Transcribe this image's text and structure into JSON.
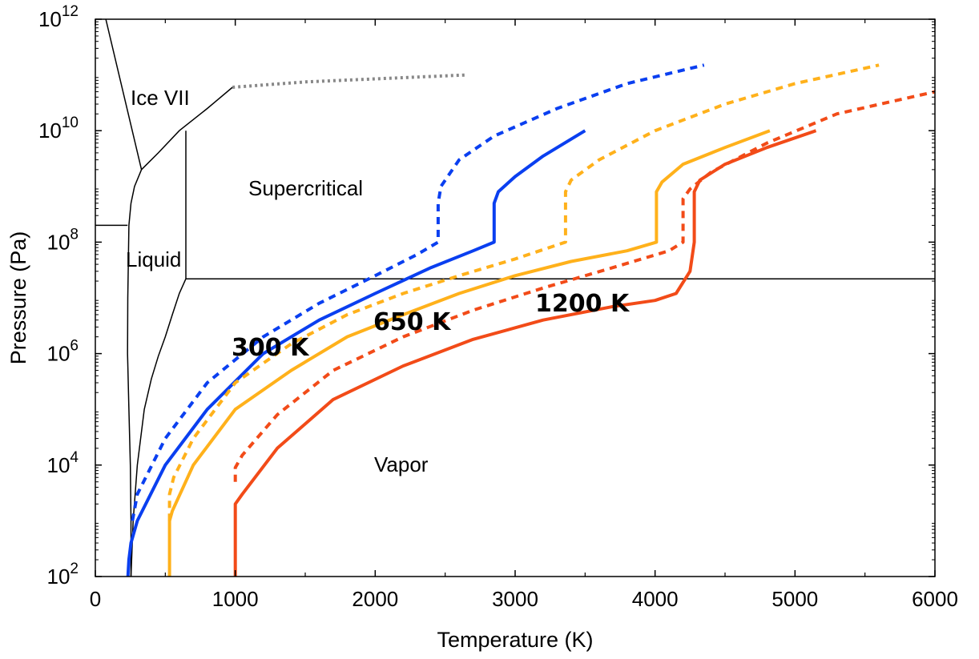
{
  "chart_data": {
    "type": "line",
    "title": "",
    "xlabel": "Temperature (K)",
    "ylabel": "Pressure (Pa)",
    "xlim": [
      0,
      6000
    ],
    "ylim": [
      100,
      1000000000000
    ],
    "yscale": "log",
    "grid": false,
    "legend": "none",
    "x_ticks": [
      "0",
      "1000",
      "2000",
      "3000",
      "4000",
      "5000",
      "6000"
    ],
    "y_ticks": [
      {
        "base": "10",
        "exp": "2"
      },
      {
        "base": "10",
        "exp": "4"
      },
      {
        "base": "10",
        "exp": "6"
      },
      {
        "base": "10",
        "exp": "8"
      },
      {
        "base": "10",
        "exp": "10"
      },
      {
        "base": "10",
        "exp": "12"
      }
    ],
    "region_labels": [
      "Ice VII",
      "Supercritical",
      "Liquid",
      "Vapor"
    ],
    "series_labels": [
      "300 K",
      "650 K",
      "1200 K"
    ],
    "phase_boundaries": [
      {
        "name": "ice-vii-melting",
        "x": [
          75,
          330
        ],
        "y": [
          1000000000000,
          2000000000
        ]
      },
      {
        "name": "liquid-ice-boundary",
        "x": [
          0,
          230
        ],
        "y": [
          200000000,
          200000000
        ]
      },
      {
        "name": "melting-curve",
        "x": [
          255,
          255,
          250,
          240,
          230,
          232,
          240,
          255,
          280,
          330
        ],
        "y": [
          100,
          1000,
          10000,
          100000,
          1000000,
          10000000,
          200000000,
          500000000,
          1000000000,
          2000000000
        ]
      },
      {
        "name": "ice-vii-upper",
        "x": [
          330,
          450,
          600,
          800,
          980
        ],
        "y": [
          2000000000,
          4000000000,
          10000000000,
          25000000000,
          60000000000
        ]
      },
      {
        "name": "vaporization-curve",
        "x": [
          255,
          270,
          300,
          350,
          400,
          450,
          500,
          550,
          600,
          647
        ],
        "y": [
          100,
          1000,
          10000,
          100000,
          350000,
          900000,
          2000000,
          5000000,
          12000000,
          22000000
        ]
      },
      {
        "name": "critical-temperature",
        "x": [
          647,
          647
        ],
        "y": [
          22000000,
          10000000000
        ]
      },
      {
        "name": "critical-pressure",
        "x": [
          647,
          6000
        ],
        "y": [
          22000000,
          22000000
        ]
      }
    ],
    "extrapolated_boundary": {
      "name": "ice-vii-extrapolated",
      "color": "#888888",
      "x": [
        980,
        1500,
        2000,
        2650
      ],
      "y": [
        60000000000,
        75000000000,
        85000000000,
        100000000000
      ]
    },
    "series": [
      {
        "name": "300 K",
        "color": "#0a3ff0",
        "style": "solid",
        "x": [
          233,
          240,
          255,
          300,
          500,
          800,
          1200,
          1600,
          2000,
          2400,
          2700,
          2850,
          2850,
          2880,
          3000,
          3200,
          3500
        ],
        "y": [
          100,
          200,
          400,
          1000,
          10000,
          100000,
          1000000,
          4000000,
          12000000,
          35000000,
          70000000,
          100000000,
          500000000,
          800000000,
          1500000000,
          3500000000,
          10000000000
        ]
      },
      {
        "name": "300 K",
        "color": "#0a3ff0",
        "style": "dashed",
        "x": [
          265,
          300,
          500,
          800,
          1200,
          1600,
          2000,
          2300,
          2450,
          2450,
          2470,
          2600,
          2850,
          3300,
          3800,
          4350
        ],
        "y": [
          1000,
          3000,
          30000,
          300000,
          2000000,
          8000000,
          25000000,
          60000000,
          100000000,
          500000000,
          1000000000,
          3000000000,
          8000000000,
          25000000000,
          70000000000,
          150000000000
        ]
      },
      {
        "name": "650 K",
        "color": "#ffb11b",
        "style": "solid",
        "x": [
          530,
          530,
          550,
          700,
          1000,
          1400,
          1800,
          2200,
          2600,
          3000,
          3400,
          3800,
          4010,
          4010,
          4050,
          4200,
          4500,
          4820
        ],
        "y": [
          100,
          1000,
          1500,
          10000,
          100000,
          500000,
          2000000,
          5000000,
          12000000,
          25000000,
          45000000,
          70000000,
          100000000,
          800000000,
          1200000000,
          2500000000,
          5000000000,
          10000000000
        ]
      },
      {
        "name": "650 K",
        "color": "#ffb11b",
        "style": "dashed",
        "x": [
          530,
          530,
          560,
          700,
          1000,
          1400,
          1800,
          2200,
          2600,
          3000,
          3360,
          3360,
          3400,
          3600,
          4000,
          4500,
          5000,
          5600
        ],
        "y": [
          1000,
          3000,
          6000,
          30000,
          300000,
          1500000,
          5000000,
          12000000,
          25000000,
          50000000,
          100000000,
          800000000,
          1300000000,
          3000000000,
          10000000000,
          30000000000,
          70000000000,
          150000000000
        ]
      },
      {
        "name": "1200 K",
        "color": "#f24b18",
        "style": "solid",
        "x": [
          1000,
          1000,
          1050,
          1300,
          1700,
          2200,
          2700,
          3200,
          3700,
          4000,
          4150,
          4250,
          4280,
          4280,
          4320,
          4500,
          4800,
          5150
        ],
        "y": [
          100,
          2000,
          3000,
          20000,
          150000,
          600000,
          1800000,
          4000000,
          7000000,
          9000000,
          12000000,
          30000000,
          100000000,
          800000000,
          1300000000,
          2500000000,
          5000000000,
          10000000000
        ]
      },
      {
        "name": "1200 K",
        "color": "#f24b18",
        "style": "dashed",
        "x": [
          1000,
          1000,
          1050,
          1300,
          1700,
          2200,
          2700,
          3200,
          3700,
          4100,
          4200,
          4200,
          4250,
          4400,
          4800,
          5300,
          6000
        ],
        "y": [
          5000,
          9000,
          15000,
          80000,
          500000,
          2000000,
          6000000,
          15000000,
          35000000,
          70000000,
          100000000,
          600000000,
          900000000,
          1800000000,
          6000000000,
          20000000000,
          50000000000
        ]
      }
    ]
  }
}
